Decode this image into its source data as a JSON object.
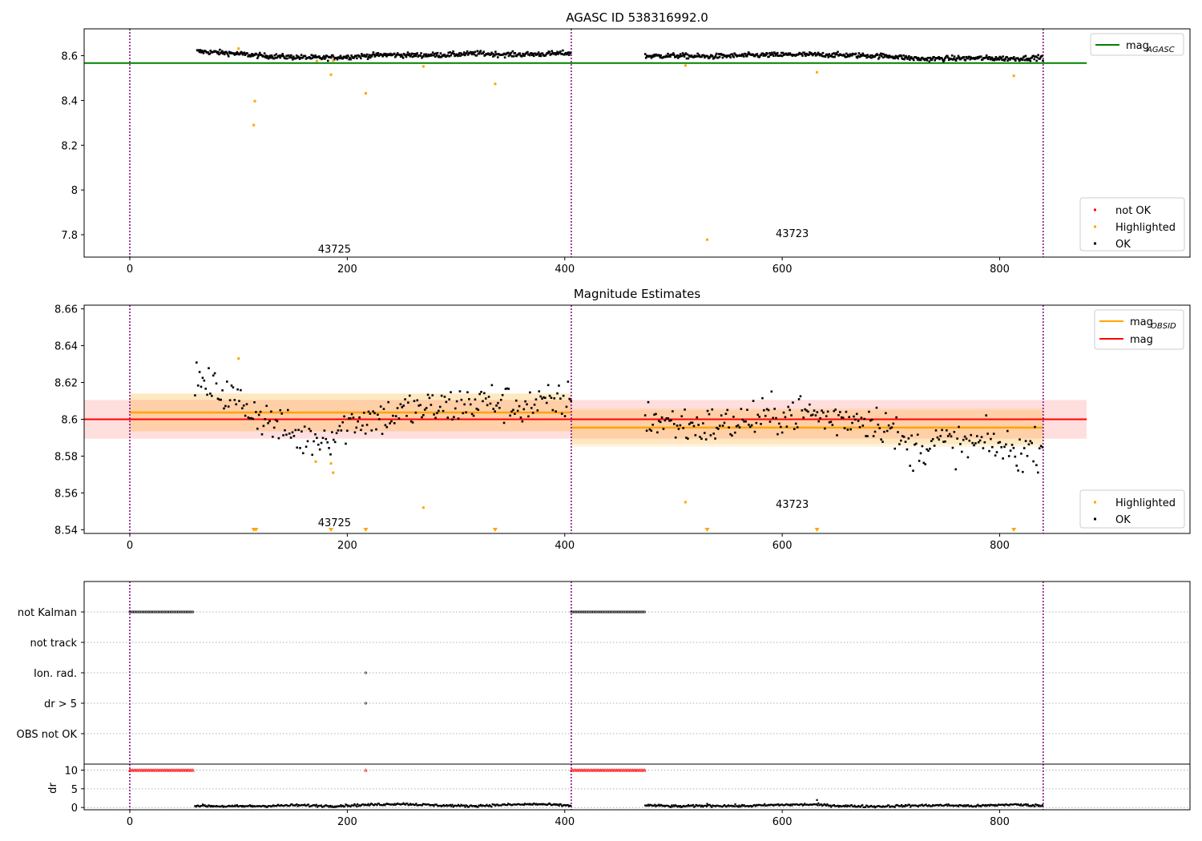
{
  "figure": {
    "colors": {
      "ok": "#000000",
      "highlighted": "#ffa500",
      "not_ok": "#ff0000",
      "agasc_line": "#008000",
      "obsid_line": "#ffa500",
      "mag_line": "#ff0000",
      "obsid_boundary": "#800080"
    }
  },
  "chart_data": [
    {
      "type": "scatter",
      "title": "AGASC ID 538316992.0",
      "xlim": [
        -42,
        975
      ],
      "ylim": [
        7.7,
        8.72
      ],
      "xticks": [
        0,
        200,
        400,
        600,
        800
      ],
      "yticks": [
        7.8,
        8.0,
        8.2,
        8.4,
        8.6
      ],
      "ytick_labels": [
        "7.8",
        "8.0",
        "8.2",
        "8.4",
        "8.6"
      ],
      "obsid_boundaries": [
        0,
        406,
        840
      ],
      "obsid_labels": [
        {
          "text": "43725",
          "x": 186,
          "y": 7.72
        },
        {
          "text": "43723",
          "x": 607,
          "y": 7.79
        }
      ],
      "hlines": [
        {
          "name": "mag_AGASC",
          "y": 8.567,
          "x_range": [
            -42,
            880
          ],
          "color": "#008000"
        }
      ],
      "legend_lines": [
        {
          "label": "mag",
          "sub": "AGASC",
          "color": "#008000"
        }
      ],
      "legend_markers": [
        {
          "label": "not OK",
          "color": "#ff0000"
        },
        {
          "label": "Highlighted",
          "color": "#ffa500"
        },
        {
          "label": "OK",
          "color": "#000000"
        }
      ],
      "ok_segments": [
        {
          "x_start": 62,
          "x_end": 406,
          "levels": [
            8.619,
            8.612,
            8.6,
            8.594,
            8.59,
            8.596,
            8.604,
            8.602,
            8.604,
            8.61,
            8.605,
            8.607,
            8.612
          ]
        },
        {
          "x_start": 474,
          "x_end": 840,
          "levels": [
            8.598,
            8.6,
            8.596,
            8.6,
            8.603,
            8.605,
            8.604,
            8.601,
            8.598,
            8.585,
            8.588,
            8.589,
            8.587,
            8.592
          ]
        }
      ],
      "highlighted_points": [
        {
          "x": 100,
          "y": 8.632
        },
        {
          "x": 114,
          "y": 8.29
        },
        {
          "x": 115,
          "y": 8.397
        },
        {
          "x": 172,
          "y": 8.577
        },
        {
          "x": 185,
          "y": 8.515
        },
        {
          "x": 187,
          "y": 8.578
        },
        {
          "x": 217,
          "y": 8.432
        },
        {
          "x": 270,
          "y": 8.552
        },
        {
          "x": 336,
          "y": 8.474
        },
        {
          "x": 511,
          "y": 8.556
        },
        {
          "x": 531,
          "y": 7.778
        },
        {
          "x": 632,
          "y": 8.526
        },
        {
          "x": 813,
          "y": 8.51
        }
      ]
    },
    {
      "type": "scatter",
      "title": "Magnitude Estimates",
      "xlim": [
        -42,
        975
      ],
      "ylim": [
        8.538,
        8.662
      ],
      "xticks": [
        0,
        200,
        400,
        600,
        800
      ],
      "yticks": [
        8.54,
        8.56,
        8.58,
        8.6,
        8.62,
        8.64,
        8.66
      ],
      "ytick_labels": [
        "8.54",
        "8.56",
        "8.58",
        "8.60",
        "8.62",
        "8.64",
        "8.66"
      ],
      "obsid_boundaries": [
        0,
        406,
        840
      ],
      "obsid_labels": [
        {
          "text": "43725",
          "x": 186,
          "y": 8.542
        },
        {
          "text": "43723",
          "x": 607,
          "y": 8.552
        }
      ],
      "mag": {
        "value": 8.6,
        "band": [
          8.5895,
          8.6105
        ],
        "x_range": [
          -42,
          880
        ],
        "color": "#ff0000"
      },
      "mag_obsid": [
        {
          "value": 8.6037,
          "inner": [
            8.5935,
            8.614
          ],
          "outer": [
            8.5935,
            8.614
          ],
          "x_range": [
            0,
            406
          ]
        },
        {
          "value": 8.5955,
          "inner": [
            8.5865,
            8.605
          ],
          "outer": [
            8.585,
            8.606
          ],
          "x_range": [
            406,
            840
          ]
        }
      ],
      "legend_lines": [
        {
          "label": "mag",
          "sub": "OBSID",
          "color": "#ffa500"
        },
        {
          "label": "mag",
          "sub": "",
          "color": "#ff0000"
        }
      ],
      "legend_markers": [
        {
          "label": "Highlighted",
          "color": "#ffa500"
        },
        {
          "label": "OK",
          "color": "#000000"
        }
      ],
      "ok_segments": [
        {
          "x_start": 60,
          "x_end": 406,
          "levels": [
            8.62,
            8.615,
            8.606,
            8.597,
            8.589,
            8.591,
            8.6,
            8.601,
            8.605,
            8.606,
            8.608,
            8.61,
            8.607,
            8.608,
            8.611
          ]
        },
        {
          "x_start": 474,
          "x_end": 840,
          "levels": [
            8.601,
            8.598,
            8.596,
            8.597,
            8.6,
            8.602,
            8.604,
            8.6,
            8.601,
            8.598,
            8.583,
            8.588,
            8.586,
            8.587,
            8.582,
            8.585
          ]
        }
      ],
      "highlighted_points": [
        {
          "x": 100,
          "y": 8.633
        },
        {
          "x": 171,
          "y": 8.577
        },
        {
          "x": 185,
          "y": 8.576
        },
        {
          "x": 187,
          "y": 8.571
        },
        {
          "x": 270,
          "y": 8.552
        },
        {
          "x": 511,
          "y": 8.555
        }
      ],
      "below_range_markers": [
        114,
        116,
        185,
        217,
        336,
        531,
        632,
        813
      ]
    },
    {
      "type": "scatter",
      "title": "",
      "xlim": [
        -42,
        975
      ],
      "categories": [
        "not Kalman",
        "not track",
        "Ion. rad.",
        "dr > 5",
        "OBS not OK"
      ],
      "flag_segments": [
        {
          "category": "not Kalman",
          "x_start": 0,
          "x_end": 59
        },
        {
          "category": "not Kalman",
          "x_start": 406,
          "x_end": 474
        }
      ],
      "flag_points": [
        {
          "category": "Ion. rad.",
          "x": 217
        },
        {
          "category": "dr > 5",
          "x": 217
        }
      ],
      "obsid_boundaries": [
        0,
        406,
        840
      ]
    },
    {
      "type": "scatter",
      "title": "",
      "ylabel": "dr",
      "xlim": [
        -42,
        975
      ],
      "ylim": [
        -0.6,
        11.6
      ],
      "xticks": [
        0,
        200,
        400,
        600,
        800
      ],
      "yticks": [
        0,
        5,
        10
      ],
      "obsid_boundaries": [
        0,
        406,
        840
      ],
      "clipped_segments": [
        {
          "x_start": 0,
          "x_end": 59,
          "y": 10
        },
        {
          "x_start": 406,
          "x_end": 474,
          "y": 10
        }
      ],
      "clipped_points": [
        {
          "x": 217,
          "y": 10
        }
      ],
      "ok_segments": [
        {
          "x_start": 60,
          "x_end": 406,
          "levels": [
            0.5,
            0.3,
            0.4,
            0.6,
            0.4,
            0.7,
            1.0,
            0.6,
            0.4,
            0.7,
            0.9,
            0.5
          ]
        },
        {
          "x_start": 474,
          "x_end": 840,
          "levels": [
            0.6,
            0.3,
            0.5,
            0.4,
            0.7,
            0.8,
            0.4,
            0.3,
            0.5,
            0.6,
            0.4,
            0.8,
            0.5
          ]
        }
      ],
      "outlier_points": [
        {
          "x": 531,
          "y": 1.0
        },
        {
          "x": 632,
          "y": 2.0
        }
      ]
    }
  ]
}
